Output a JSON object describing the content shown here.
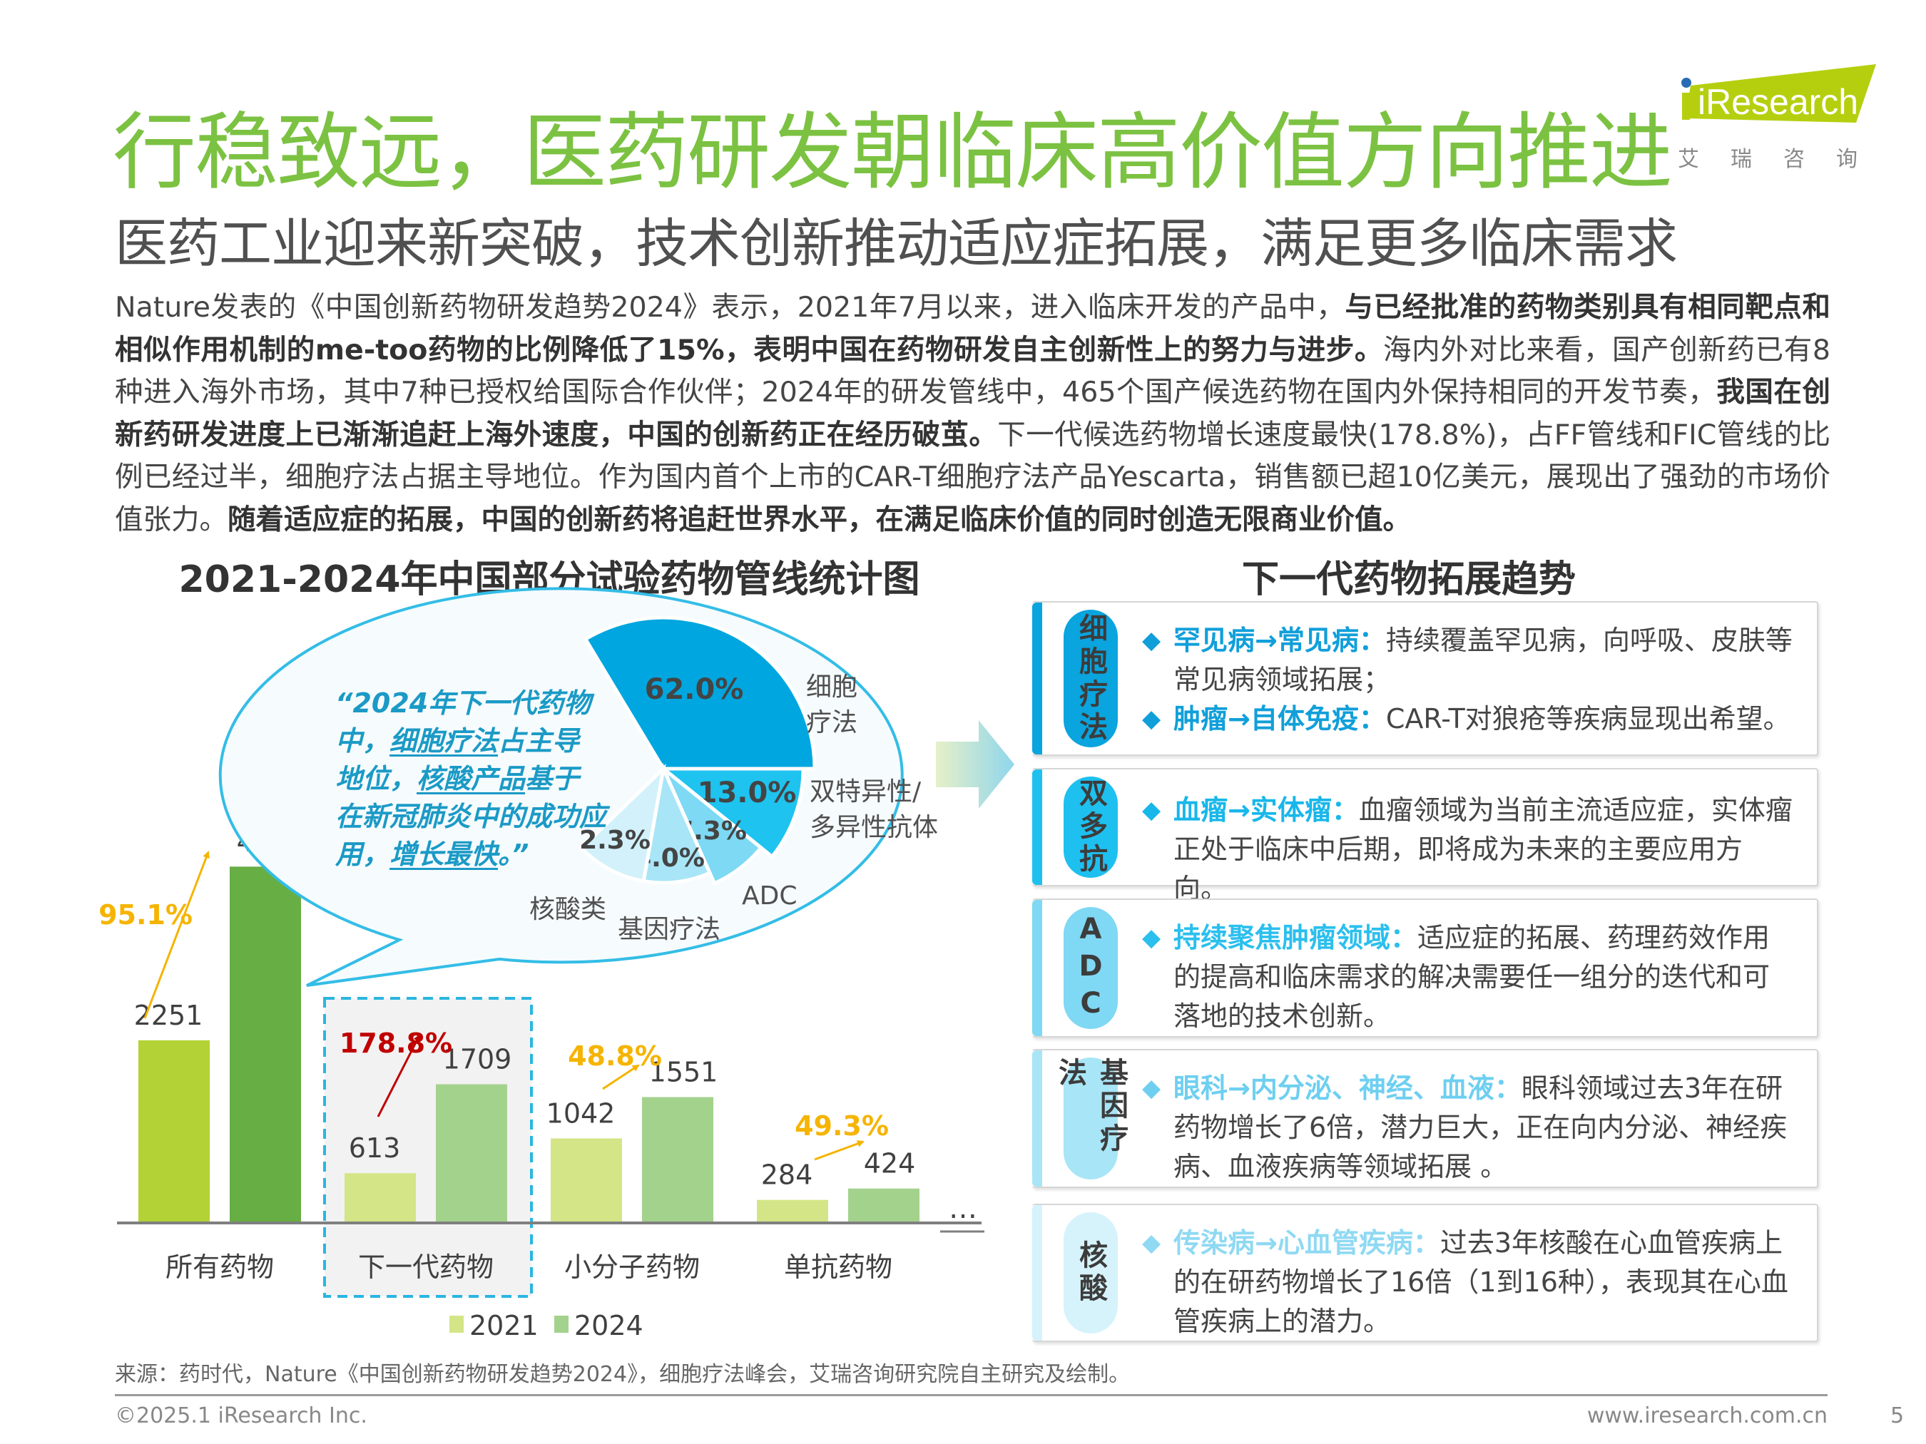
{
  "header": {
    "title": "行稳致远，医药研发朝临床高价值方向推进",
    "subtitle": "医药工业迎来新突破，技术创新推动适应症拓展，满足更多临床需求",
    "logo": {
      "text": "iResearch",
      "cn": "艾瑞咨询",
      "brand_color": "#b5cf0f",
      "dot_color": "#2a6bb5"
    }
  },
  "paragraph": [
    {
      "text": "Nature发表的《中国创新药物研发趋势2024》表示，2021年7月以来，进入临床开发的产品中，",
      "bold": false
    },
    {
      "text": "与已经批准的药物类别具有相同靶点和相似作用机制的me-too药物的比例降低了15%，表明中国在药物研发自主创新性上的努力与进步。",
      "bold": true
    },
    {
      "text": "海内外对比来看，国产创新药已有8种进入海外市场，其中7种已授权给国际合作伙伴；2024年的研发管线中，465个国产候选药物在国内外保持相同的开发节奏，",
      "bold": false
    },
    {
      "text": "我国在创新药研发进度上已渐渐追赶上海外速度，中国的创新药正在经历破茧。",
      "bold": true
    },
    {
      "text": "下一代候选药物增长速度最快(178.8%)，占FF管线和FIC管线的比例已经过半，细胞疗法占据主导地位。作为国内首个上市的CAR-T细胞疗法产品Yescarta，销售额已超10亿美元，展现出了强劲的市场价值张力。",
      "bold": false
    },
    {
      "text": "随着适应症的拓展，中国的创新药将追赶世界水平，在满足临床价值的同时创造无限商业价值。",
      "bold": true
    }
  ],
  "chart_data": [
    {
      "type": "bar",
      "title": "2021-2024年中国部分试验药物管线统计图",
      "categories": [
        "所有药物",
        "下一代药物",
        "小分子药物",
        "单抗药物"
      ],
      "series": [
        {
          "name": "2021",
          "values": [
            2251,
            613,
            1042,
            284
          ],
          "colors": [
            "#b3d235",
            "#d3e587",
            "#d3e587",
            "#d3e587"
          ]
        },
        {
          "name": "2024",
          "values": [
            4391,
            1709,
            1551,
            424
          ],
          "colors": [
            "#67ae45",
            "#a3d28d",
            "#a3d28d",
            "#a3d28d"
          ]
        }
      ],
      "growth_labels": [
        {
          "text": "95.1%",
          "color": "#f5b400"
        },
        {
          "text": "178.8%",
          "color": "#c00000"
        },
        {
          "text": "48.8%",
          "color": "#f5b400"
        },
        {
          "text": "49.3%",
          "color": "#f5b400"
        }
      ],
      "highlighted_category": "下一代药物",
      "more_indicator": "…",
      "legend_position": "bottom",
      "grid": false
    },
    {
      "type": "pie",
      "slices": [
        {
          "label": "细胞疗法",
          "value": 62.0,
          "value_label": "62.0%",
          "color": "#00a6df"
        },
        {
          "label": "双特异性/多异性抗体",
          "value": 13.0,
          "value_label": "13.0%",
          "color": "#1ec3ef"
        },
        {
          "label": "ADC",
          "value": 7.3,
          "value_label": "7.3%",
          "color": "#7dd9f4"
        },
        {
          "label": "基因疗法",
          "value": 4.0,
          "value_label": "4.0%",
          "color": "#a8e5f7"
        },
        {
          "label": "核酸类",
          "value": 2.3,
          "value_label": "2.3%",
          "color": "#d2f1fb"
        }
      ]
    }
  ],
  "quote": [
    {
      "text": "“2024年下一代药物中，",
      "u": false
    },
    {
      "text": "细胞疗法",
      "u": true
    },
    {
      "text": "占主导地位，",
      "u": false
    },
    {
      "text": "核酸产品",
      "u": true
    },
    {
      "text": "基于在新冠肺炎中的成功应用，",
      "u": false
    },
    {
      "text": "增长最快",
      "u": true
    },
    {
      "text": "。”",
      "u": false
    }
  ],
  "trends": {
    "title": "下一代药物拓展趋势",
    "cards": [
      {
        "label": "细胞疗法",
        "color": "#0aa4de",
        "head_color": "#119fd9",
        "bullets": [
          {
            "head": "罕见病→常见病：",
            "body": "持续覆盖罕见病，向呼吸、皮肤等常见病领域拓展；"
          },
          {
            "head": "肿瘤→自体免疫：",
            "body": "CAR-T对狼疮等疾病显现出希望。"
          }
        ]
      },
      {
        "label": "双多抗",
        "color": "#1ec0ef",
        "head_color": "#18b7ea",
        "bullets": [
          {
            "head": "血瘤→实体瘤：",
            "body": "血瘤领域为当前主流适应症，实体瘤正处于临床中后期，即将成为未来的主要应用方向。"
          }
        ]
      },
      {
        "label": "ADC",
        "color": "#7fd8f4",
        "head_color": "#2bbfee",
        "bullets": [
          {
            "head": "持续聚焦肿瘤领域：",
            "body": "适应症的拓展、药理药效作用的提高和临床需求的解决需要任一组分的迭代和可落地的技术创新。"
          }
        ]
      },
      {
        "label": "基因疗法",
        "color": "#a8e5f7",
        "head_color": "#6ecff0",
        "bullets": [
          {
            "head": "眼科→内分泌、神经、血液：",
            "body": "眼科领域过去3年在研药物增长了6倍，潜力巨大，正在向内分泌、神经疾病、血液疾病等领域拓展 。"
          }
        ]
      },
      {
        "label": "核酸",
        "color": "#d6f3fc",
        "head_color": "#8fd9f3",
        "bullets": [
          {
            "head": "传染病→心血管疾病：",
            "body": "过去3年核酸在心血管疾病上的在研药物增长了16倍（1到16种），表现其在心血管疾病上的潜力。"
          }
        ]
      }
    ]
  },
  "footer": {
    "source": "来源：药时代，Nature《中国创新药物研发趋势2024》，细胞疗法峰会，艾瑞咨询研究院自主研究及绘制。",
    "copyright": "©2025.1 iResearch Inc.",
    "website": "www.iresearch.com.cn",
    "page_number": "5"
  }
}
